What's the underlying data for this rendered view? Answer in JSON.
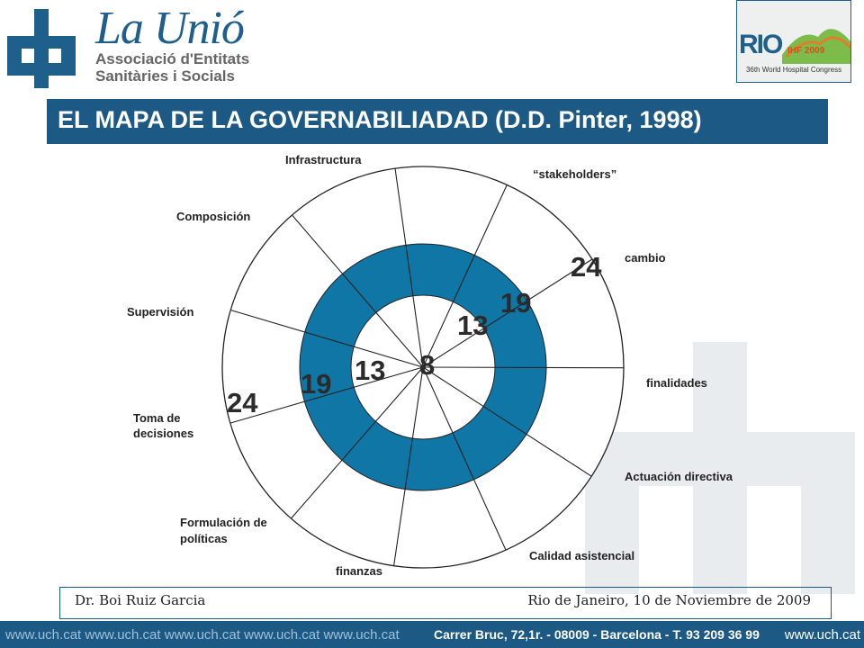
{
  "header": {
    "logo_title": "La Unió",
    "logo_sub_1": "Associació d'Entitats",
    "logo_sub_2": "Sanitàries i Socials",
    "badge_mark": "RIO",
    "badge_event": "IHF 2009",
    "badge_congress": "36th World Hospital Congress"
  },
  "title": "EL MAPA DE LA GOVERNABILIADAD (D.D. Pinter, 1998)",
  "diagram": {
    "segments": [
      "Infrastructura",
      "“stakeholders”",
      "cambio",
      "finalidades",
      "Actuación directiva",
      "Calidad asistencial",
      "finanzas",
      "Formulación de políticas",
      "Toma de decisiones",
      "Supervisión",
      "Composición"
    ],
    "seg_labels": {
      "infra": "Infrastructura",
      "stake": "“stakeholders”",
      "cambio": "cambio",
      "finalidades": "finalidades",
      "actuacion": "Actuación directiva",
      "calidad": "Calidad asistencial",
      "finanzas": "finanzas",
      "formulacion_1": "Formulación de",
      "formulacion_2": "políticas",
      "toma_1": "Toma de",
      "toma_2": "decisiones",
      "supervision": "Supervisión",
      "composicion": "Composición"
    },
    "ring_values": [
      "8",
      "13",
      "19",
      "24"
    ],
    "right_labels": {
      "v24": "24",
      "v19": "19",
      "v13": "13"
    },
    "left_labels": {
      "v24": "24",
      "v19": "19",
      "v13": "13"
    },
    "center_label": "8",
    "colors": {
      "ring_fill": "#0f76a6",
      "line": "#222222",
      "outer_fill": "#ffffff"
    }
  },
  "footer": {
    "author": "Dr. Boi Ruiz Garcia",
    "place_date": "Rio de Janeiro, 10 de Noviembre de 2009",
    "web_repeat": "www.uch.cat www.uch.cat www.uch.cat www.uch.cat www.uch.cat",
    "address": "Carrer Bruc, 72,1r.  - 08009 -  Barcelona  - T. 93 209 36 99",
    "web_end": "www.uch.cat"
  },
  "brand_colors": {
    "primary": "#1c5985",
    "accent": "#d94f1b"
  }
}
